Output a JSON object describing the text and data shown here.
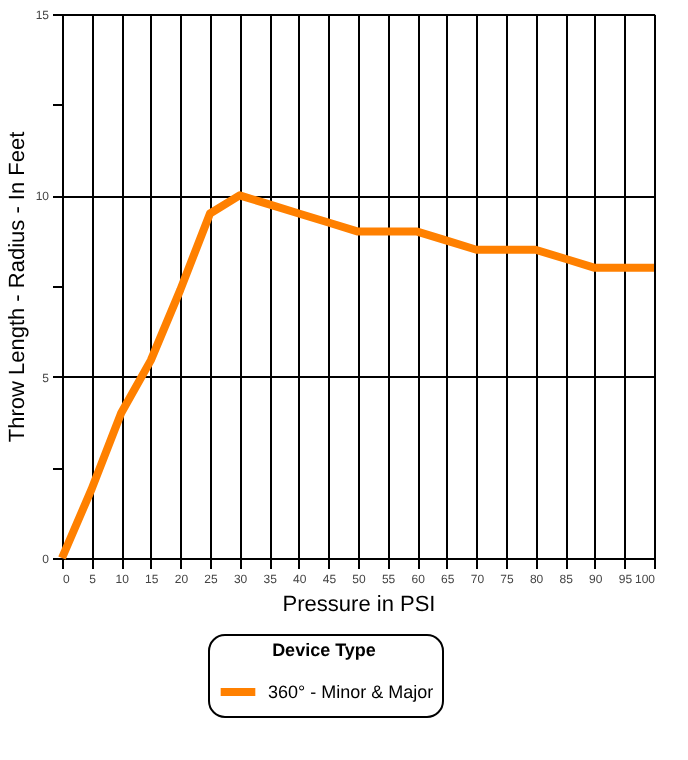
{
  "chart_data": {
    "type": "line",
    "xlabel": "Pressure in PSI",
    "ylabel": "Throw Length - Radius - In Feet",
    "legend_title": "Device Type",
    "x": [
      0,
      5,
      10,
      15,
      20,
      25,
      30,
      35,
      40,
      45,
      50,
      55,
      60,
      65,
      70,
      75,
      80,
      85,
      90,
      95,
      100
    ],
    "series": [
      {
        "name": "360° - Minor & Major",
        "color": "#ff8000",
        "values": [
          0,
          1.9,
          4.0,
          5.45,
          7.4,
          9.5,
          10,
          9.75,
          9.5,
          9.25,
          9,
          9,
          9,
          8.75,
          8.5,
          8.5,
          8.5,
          8.25,
          8,
          8,
          8
        ]
      }
    ],
    "xlim": [
      0,
      100
    ],
    "xticks": [
      0,
      5,
      10,
      15,
      20,
      25,
      30,
      35,
      40,
      45,
      50,
      55,
      60,
      65,
      70,
      75,
      80,
      85,
      90,
      95,
      100
    ],
    "ylim": [
      0,
      15
    ],
    "yticks": [
      0,
      {
        "value": 2.5,
        "label": null
      },
      5,
      {
        "value": 7.5,
        "label": null
      },
      10,
      {
        "value": 12.5,
        "label": null
      },
      15
    ],
    "grid": true,
    "legend": "bottom",
    "marker": "none",
    "line_style": "solid"
  }
}
